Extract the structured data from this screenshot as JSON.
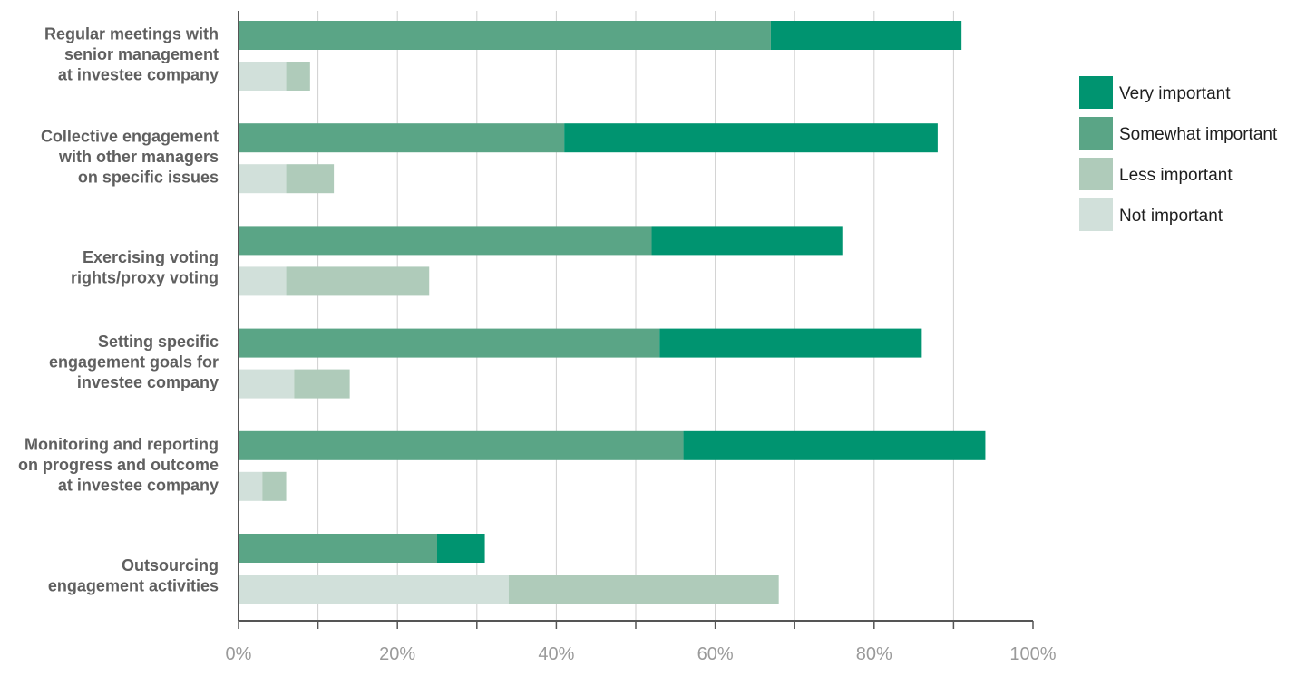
{
  "chart_data": {
    "type": "bar",
    "orientation": "horizontal",
    "stacked": true,
    "x_ticks": [
      "0%",
      "20%",
      "40%",
      "60%",
      "80%",
      "100%"
    ],
    "xlim": [
      0,
      100
    ],
    "grid": true,
    "legend_position": "right",
    "categories": [
      {
        "label_lines": [
          "Regular meetings with",
          "senior management",
          "at investee company"
        ],
        "important": [
          {
            "series": "Somewhat important",
            "value": 67
          },
          {
            "series": "Very important",
            "value": 24
          }
        ],
        "unimportant": [
          {
            "series": "Not important",
            "value": 6
          },
          {
            "series": "Less important",
            "value": 3
          }
        ]
      },
      {
        "label_lines": [
          "Collective engagement",
          "with other managers",
          "on specific issues"
        ],
        "important": [
          {
            "series": "Somewhat important",
            "value": 41
          },
          {
            "series": "Very important",
            "value": 47
          }
        ],
        "unimportant": [
          {
            "series": "Not important",
            "value": 6
          },
          {
            "series": "Less important",
            "value": 6
          }
        ]
      },
      {
        "label_lines": [
          "Exercising voting",
          "rights/proxy voting"
        ],
        "important": [
          {
            "series": "Somewhat important",
            "value": 52
          },
          {
            "series": "Very important",
            "value": 24
          }
        ],
        "unimportant": [
          {
            "series": "Not important",
            "value": 6
          },
          {
            "series": "Less important",
            "value": 18
          }
        ]
      },
      {
        "label_lines": [
          "Setting specific",
          "engagement goals for",
          "investee company"
        ],
        "important": [
          {
            "series": "Somewhat important",
            "value": 53
          },
          {
            "series": "Very important",
            "value": 33
          }
        ],
        "unimportant": [
          {
            "series": "Not important",
            "value": 7
          },
          {
            "series": "Less important",
            "value": 7
          }
        ]
      },
      {
        "label_lines": [
          "Monitoring and reporting",
          "on progress and outcome",
          "at investee company"
        ],
        "important": [
          {
            "series": "Somewhat important",
            "value": 56
          },
          {
            "series": "Very important",
            "value": 38
          }
        ],
        "unimportant": [
          {
            "series": "Not important",
            "value": 3
          },
          {
            "series": "Less important",
            "value": 3
          }
        ]
      },
      {
        "label_lines": [
          "Outsourcing",
          "engagement activities"
        ],
        "important": [
          {
            "series": "Somewhat important",
            "value": 25
          },
          {
            "series": "Very important",
            "value": 6
          }
        ],
        "unimportant": [
          {
            "series": "Not important",
            "value": 34
          },
          {
            "series": "Less important",
            "value": 34
          }
        ]
      }
    ],
    "series": [
      {
        "name": "Very important",
        "color": "#009470"
      },
      {
        "name": "Somewhat important",
        "color": "#5aa586"
      },
      {
        "name": "Less important",
        "color": "#afcbba"
      },
      {
        "name": "Not important",
        "color": "#d1e0da"
      }
    ]
  }
}
